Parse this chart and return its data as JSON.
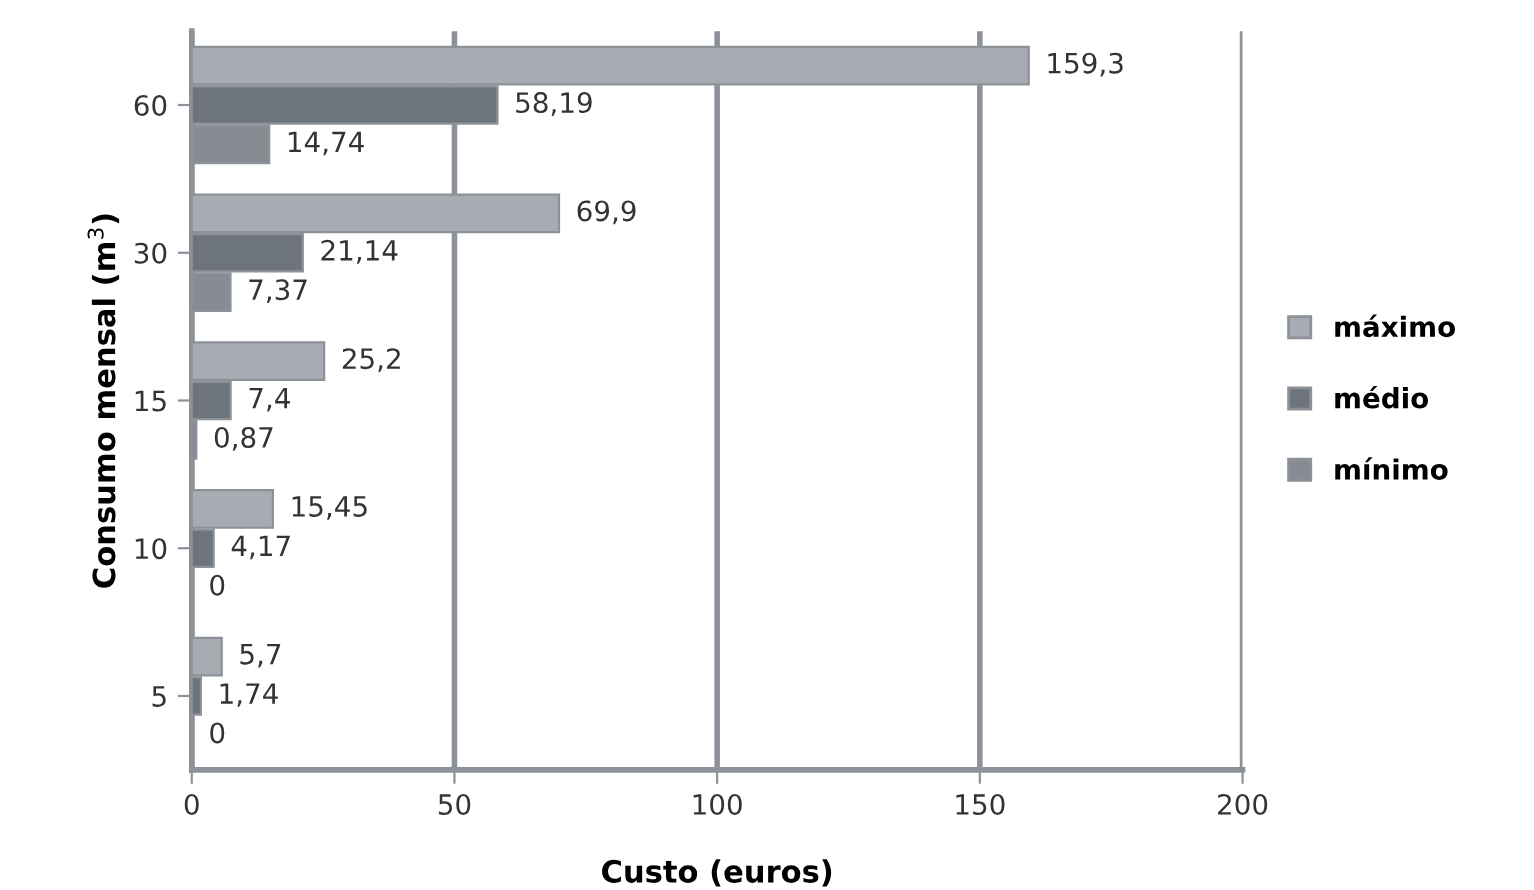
{
  "chart_data": {
    "type": "bar",
    "orientation": "horizontal",
    "xlabel": "Custo (euros)",
    "ylabel": "Consumo mensal (m$^{3}$)",
    "categories": [
      "60",
      "30",
      "15",
      "10",
      "5"
    ],
    "series": [
      {
        "name": "máximo",
        "color": "#a7acb3",
        "values": [
          159.3,
          69.9,
          25.2,
          15.45,
          5.7
        ],
        "value_labels": [
          "159,3",
          "69,9",
          "25,2",
          "15,45",
          "5,7"
        ]
      },
      {
        "name": "médio",
        "color": "#6e747b",
        "values": [
          58.19,
          21.14,
          7.4,
          4.17,
          1.74
        ],
        "value_labels": [
          "58,19",
          "21,14",
          "7,4",
          "4,17",
          "1,74"
        ]
      },
      {
        "name": "mínimo",
        "color": "#878c93",
        "values": [
          14.74,
          7.37,
          0.87,
          0,
          0
        ],
        "value_labels": [
          "14,74",
          "7,37",
          "0,87",
          "0",
          "0"
        ]
      }
    ],
    "xlim": [
      0,
      200
    ],
    "xticks": [
      0,
      50,
      100,
      150,
      200
    ],
    "grid": "x",
    "legend": "right"
  }
}
